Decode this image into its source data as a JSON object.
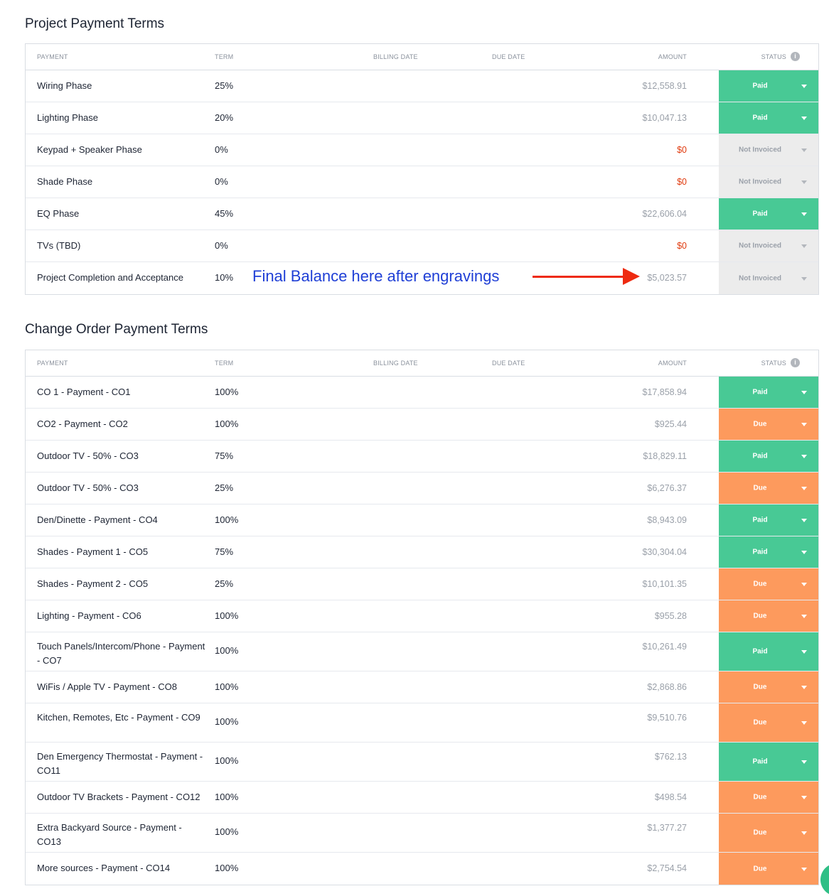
{
  "columns": {
    "payment": "PAYMENT",
    "term": "TERM",
    "billing_date": "BILLING DATE",
    "due_date": "DUE DATE",
    "amount": "AMOUNT",
    "status": "STATUS",
    "info_glyph": "i"
  },
  "project": {
    "title": "Project Payment Terms",
    "rows": [
      {
        "payment": "Wiring Phase",
        "term": "25%",
        "amount": "$12,558.91",
        "status": "Paid"
      },
      {
        "payment": "Lighting Phase",
        "term": "20%",
        "amount": "$10,047.13",
        "status": "Paid"
      },
      {
        "payment": "Keypad + Speaker Phase",
        "term": "0%",
        "amount": "$0",
        "status": "Not Invoiced"
      },
      {
        "payment": "Shade Phase",
        "term": "0%",
        "amount": "$0",
        "status": "Not Invoiced"
      },
      {
        "payment": "EQ Phase",
        "term": "45%",
        "amount": "$22,606.04",
        "status": "Paid"
      },
      {
        "payment": "TVs (TBD)",
        "term": "0%",
        "amount": "$0",
        "status": "Not Invoiced"
      },
      {
        "payment": "Project Completion and Acceptance",
        "term": "10%",
        "amount": "$5,023.57",
        "status": "Not Invoiced"
      }
    ]
  },
  "annotation": {
    "text": "Final Balance here after engravings",
    "text_color": "#1f3fd6",
    "arrow_color": "#ee2a10"
  },
  "change_orders": {
    "title": "Change Order Payment Terms",
    "rows": [
      {
        "payment": "CO 1 - Payment - CO1",
        "term": "100%",
        "amount": "$17,858.94",
        "status": "Paid"
      },
      {
        "payment": "CO2 - Payment - CO2",
        "term": "100%",
        "amount": "$925.44",
        "status": "Due"
      },
      {
        "payment": "Outdoor TV - 50% - CO3",
        "term": "75%",
        "amount": "$18,829.11",
        "status": "Paid"
      },
      {
        "payment": "Outdoor TV - 50% - CO3",
        "term": "25%",
        "amount": "$6,276.37",
        "status": "Due"
      },
      {
        "payment": "Den/Dinette - Payment - CO4",
        "term": "100%",
        "amount": "$8,943.09",
        "status": "Paid"
      },
      {
        "payment": "Shades - Payment 1 - CO5",
        "term": "75%",
        "amount": "$30,304.04",
        "status": "Paid"
      },
      {
        "payment": "Shades - Payment 2 - CO5",
        "term": "25%",
        "amount": "$10,101.35",
        "status": "Due"
      },
      {
        "payment": "Lighting - Payment - CO6",
        "term": "100%",
        "amount": "$955.28",
        "status": "Due"
      },
      {
        "payment": "Touch Panels/Intercom/Phone - Payment - CO7",
        "term": "100%",
        "amount": "$10,261.49",
        "status": "Paid"
      },
      {
        "payment": "WiFis / Apple TV - Payment - CO8",
        "term": "100%",
        "amount": "$2,868.86",
        "status": "Due"
      },
      {
        "payment": "Kitchen, Remotes, Etc - Payment - CO9",
        "term": "100%",
        "amount": "$9,510.76",
        "status": "Due"
      },
      {
        "payment": "Den Emergency Thermostat - Payment - CO11",
        "term": "100%",
        "amount": "$762.13",
        "status": "Paid"
      },
      {
        "payment": "Outdoor TV Brackets - Payment - CO12",
        "term": "100%",
        "amount": "$498.54",
        "status": "Due"
      },
      {
        "payment": "Extra Backyard Source - Payment - CO13",
        "term": "100%",
        "amount": "$1,377.27",
        "status": "Due"
      },
      {
        "payment": "More sources - Payment - CO14",
        "term": "100%",
        "amount": "$2,754.54",
        "status": "Due"
      }
    ]
  },
  "colors": {
    "paid": "#48c995",
    "due": "#fd9a5d",
    "not_invoiced": "#ececec",
    "zero_amount": "#e03a0e"
  }
}
